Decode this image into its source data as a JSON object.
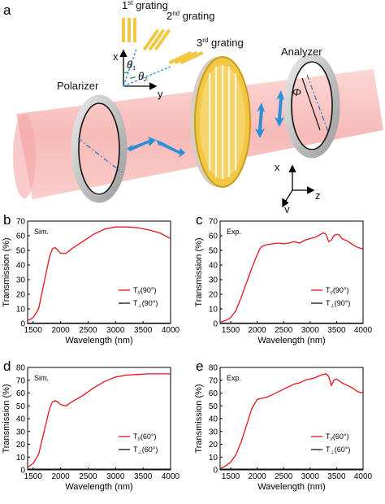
{
  "figure": {
    "panel_a_letter": "a",
    "schematic": {
      "gratings": [
        {
          "label_base": "1",
          "label_sup": "st",
          "label_rest": " grating"
        },
        {
          "label_base": "2",
          "label_sup": "nd",
          "label_rest": " grating"
        },
        {
          "label_base": "3",
          "label_sup": "rd",
          "label_rest": " grating"
        }
      ],
      "axis_top": {
        "x": "x",
        "y": "y",
        "theta1": "θ",
        "theta1_sub": "1",
        "theta2": "θ",
        "theta2_sub": "2"
      },
      "polarizer_label": "Polarizer",
      "analyzer_label": "Analyzer",
      "phi_label": "Φ",
      "axis_bottom": {
        "x": "x",
        "y": "y",
        "z": "z"
      },
      "colors": {
        "beam": "#f6b3b0",
        "grating": "#f2c744",
        "arrow": "#2a8fd6",
        "ring": "#c9c9c9"
      }
    }
  },
  "chart_data": [
    {
      "panel": "b",
      "type": "line",
      "tag": "Sim.",
      "xlabel": "Wavelength (nm)",
      "ylabel": "Transmission (%)",
      "xlim": [
        1400,
        4000
      ],
      "ylim": [
        0,
        70
      ],
      "xticks": [
        1500,
        2000,
        2500,
        3000,
        3500,
        4000
      ],
      "yticks": [
        0,
        10,
        20,
        30,
        40,
        50,
        60,
        70
      ],
      "series": [
        {
          "name": "T//(90°)",
          "legend_main": "T",
          "legend_sub": "//",
          "legend_rest": "(90°)",
          "color": "#e8141b",
          "x": [
            1400,
            1500,
            1600,
            1700,
            1800,
            1850,
            1900,
            1950,
            2000,
            2100,
            2200,
            2400,
            2600,
            2800,
            3000,
            3200,
            3400,
            3600,
            3800,
            4000
          ],
          "y": [
            2,
            4,
            10,
            28,
            46,
            51,
            52,
            50,
            48,
            48,
            51,
            56,
            61,
            64.5,
            66,
            66,
            65.5,
            64,
            62,
            58
          ]
        },
        {
          "name": "T⊥(90°)",
          "legend_main": "T",
          "legend_sub": "⊥",
          "legend_rest": "(90°)",
          "color": "#111111",
          "x": [
            1400,
            2000,
            2500,
            3000,
            3500,
            4000
          ],
          "y": [
            0.3,
            0.3,
            0.3,
            0.3,
            0.3,
            0.3
          ]
        }
      ]
    },
    {
      "panel": "c",
      "type": "line",
      "tag": "Exp.",
      "xlabel": "Wavelength (nm)",
      "ylabel": "Transmission (%)",
      "xlim": [
        1300,
        4000
      ],
      "ylim": [
        0,
        70
      ],
      "xticks": [
        1500,
        2000,
        2500,
        3000,
        3500,
        4000
      ],
      "yticks": [
        0,
        10,
        20,
        30,
        40,
        50,
        60,
        70
      ],
      "series": [
        {
          "name": "T//(90°)",
          "legend_main": "T",
          "legend_sub": "//",
          "legend_rest": "(90°)",
          "color": "#e8141b",
          "x": [
            1300,
            1400,
            1500,
            1600,
            1700,
            1800,
            1900,
            2000,
            2050,
            2100,
            2200,
            2300,
            2400,
            2500,
            2600,
            2700,
            2800,
            2900,
            3000,
            3100,
            3200,
            3250,
            3300,
            3350,
            3400,
            3450,
            3500,
            3550,
            3600,
            3700,
            3800,
            3900,
            4000
          ],
          "y": [
            1,
            2,
            4,
            9,
            18,
            28,
            38,
            47,
            51,
            53,
            54,
            54.5,
            55,
            54.5,
            55,
            56,
            55,
            57,
            58,
            59,
            61,
            62,
            61,
            56,
            57,
            60,
            61,
            60.5,
            58,
            56.5,
            54,
            52,
            51
          ]
        },
        {
          "name": "T⊥(90°)",
          "legend_main": "T",
          "legend_sub": "⊥",
          "legend_rest": "(90°)",
          "color": "#111111",
          "x": [
            1300,
            2000,
            2500,
            3000,
            3500,
            4000
          ],
          "y": [
            0.3,
            0.3,
            0.3,
            0.3,
            0.3,
            0.3
          ]
        }
      ]
    },
    {
      "panel": "d",
      "type": "line",
      "tag": "Sim.",
      "xlabel": "Wavelength (nm)",
      "ylabel": "Transmission (%)",
      "xlim": [
        1400,
        4000
      ],
      "ylim": [
        0,
        80
      ],
      "xticks": [
        1500,
        2000,
        2500,
        3000,
        3500,
        4000
      ],
      "yticks": [
        0,
        10,
        20,
        30,
        40,
        50,
        60,
        70,
        80
      ],
      "series": [
        {
          "name": "T//(60°)",
          "legend_main": "T",
          "legend_sub": "//",
          "legend_rest": "(60°)",
          "color": "#e8141b",
          "x": [
            1400,
            1500,
            1600,
            1700,
            1800,
            1850,
            1900,
            1950,
            2000,
            2100,
            2200,
            2400,
            2600,
            2800,
            3000,
            3200,
            3400,
            3600,
            3800,
            4000
          ],
          "y": [
            2,
            5,
            12,
            30,
            48,
            53,
            54,
            53,
            51,
            50,
            53,
            58,
            64,
            69,
            72.5,
            74,
            74.5,
            75,
            75,
            75
          ]
        },
        {
          "name": "T⊥(60°)",
          "legend_main": "T",
          "legend_sub": "⊥",
          "legend_rest": "(60°)",
          "color": "#111111",
          "x": [
            1400,
            2000,
            2500,
            3000,
            3500,
            4000
          ],
          "y": [
            0.5,
            0.5,
            0.5,
            0.5,
            0.5,
            0.5
          ]
        }
      ]
    },
    {
      "panel": "e",
      "type": "line",
      "tag": "Exp.",
      "xlabel": "Wavelength (nm)",
      "ylabel": "Transmission (%)",
      "xlim": [
        1300,
        4000
      ],
      "ylim": [
        0,
        80
      ],
      "xticks": [
        1500,
        2000,
        2500,
        3000,
        3500,
        4000
      ],
      "yticks": [
        0,
        10,
        20,
        30,
        40,
        50,
        60,
        70,
        80
      ],
      "series": [
        {
          "name": "T//(60°)",
          "legend_main": "T",
          "legend_sub": "//",
          "legend_rest": "(60°)",
          "color": "#e8141b",
          "x": [
            1300,
            1400,
            1500,
            1600,
            1700,
            1800,
            1900,
            2000,
            2100,
            2200,
            2300,
            2400,
            2500,
            2600,
            2700,
            2800,
            2900,
            3000,
            3100,
            3200,
            3300,
            3350,
            3400,
            3450,
            3500,
            3600,
            3700,
            3800,
            3900,
            4000
          ],
          "y": [
            1,
            3,
            6,
            12,
            22,
            35,
            48,
            55,
            56,
            57,
            59,
            61,
            63,
            65,
            67,
            68,
            70,
            71,
            72,
            74,
            75,
            73,
            66,
            70,
            71,
            68,
            66,
            64,
            61,
            60
          ]
        },
        {
          "name": "T⊥(60°)",
          "legend_main": "T",
          "legend_sub": "⊥",
          "legend_rest": "(60°)",
          "color": "#111111",
          "x": [
            1300,
            2000,
            2500,
            3000,
            3500,
            4000
          ],
          "y": [
            0.5,
            0.5,
            0.5,
            0.5,
            0.5,
            0.5
          ]
        }
      ]
    }
  ]
}
